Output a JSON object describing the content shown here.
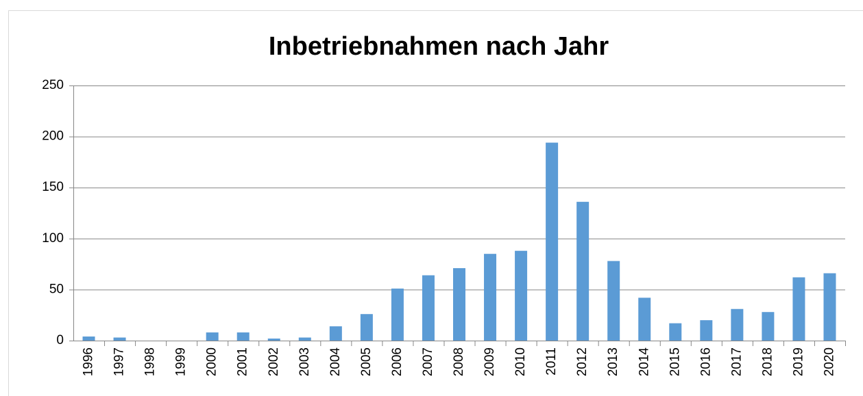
{
  "chart_data": {
    "type": "bar",
    "title": "Inbetriebnahmen nach Jahr",
    "categories": [
      "1996",
      "1997",
      "1998",
      "1999",
      "2000",
      "2001",
      "2002",
      "2003",
      "2004",
      "2005",
      "2006",
      "2007",
      "2008",
      "2009",
      "2010",
      "2011",
      "2012",
      "2013",
      "2014",
      "2015",
      "2016",
      "2017",
      "2018",
      "2019",
      "2020"
    ],
    "values": [
      4,
      3,
      0,
      0,
      8,
      8,
      2,
      3,
      14,
      26,
      51,
      64,
      71,
      85,
      88,
      194,
      136,
      78,
      42,
      17,
      20,
      31,
      28,
      62,
      66
    ],
    "color": "#5b9bd5",
    "ylim": [
      0,
      250
    ],
    "yticks": [
      0,
      50,
      100,
      150,
      200,
      250
    ],
    "grid": true
  }
}
